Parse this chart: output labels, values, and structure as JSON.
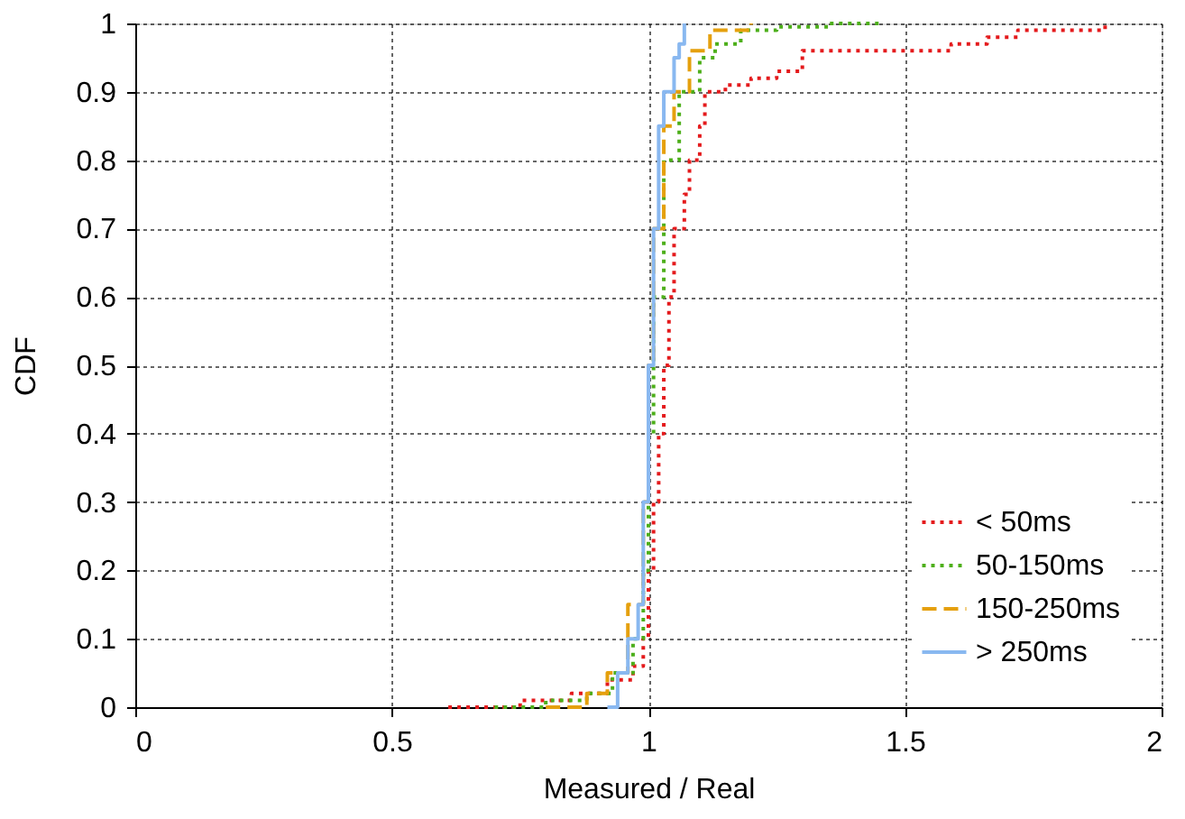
{
  "chart_data": {
    "type": "step",
    "xlabel": "Measured / Real",
    "ylabel": "CDF",
    "xlim": [
      0,
      2
    ],
    "xticks": [
      0,
      0.5,
      1,
      1.5,
      2
    ],
    "ylim": [
      0,
      1
    ],
    "yticks": [
      0,
      0.1,
      0.2,
      0.3,
      0.4,
      0.5,
      0.6,
      0.7,
      0.8,
      0.9,
      1
    ],
    "grid": true,
    "legend": "bottom right",
    "series": [
      {
        "name": "< 50ms",
        "color": "#e41a1c",
        "line_style": "dotted",
        "x": [
          0.61,
          0.75,
          0.85,
          0.92,
          0.97,
          0.99,
          1.0,
          1.01,
          1.02,
          1.03,
          1.04,
          1.05,
          1.07,
          1.08,
          1.1,
          1.11,
          1.15,
          1.2,
          1.25,
          1.3,
          1.45,
          1.59,
          1.66,
          1.72,
          1.77,
          1.89
        ],
        "values": [
          0,
          0.01,
          0.02,
          0.04,
          0.06,
          0.1,
          0.2,
          0.3,
          0.4,
          0.5,
          0.6,
          0.7,
          0.75,
          0.8,
          0.85,
          0.9,
          0.91,
          0.92,
          0.93,
          0.96,
          0.96,
          0.97,
          0.98,
          0.99,
          0.99,
          1
        ]
      },
      {
        "name": "50-150ms",
        "color": "#4daf1a",
        "line_style": "dotted",
        "x": [
          0.7,
          0.8,
          0.88,
          0.93,
          0.97,
          0.99,
          1.0,
          1.01,
          1.03,
          1.06,
          1.1,
          1.13,
          1.18,
          1.25,
          1.35,
          1.45
        ],
        "values": [
          0,
          0.01,
          0.02,
          0.05,
          0.1,
          0.2,
          0.4,
          0.6,
          0.8,
          0.9,
          0.95,
          0.97,
          0.99,
          0.995,
          1,
          1
        ]
      },
      {
        "name": "150-250ms",
        "color": "#e5a00d",
        "line_style": "dashed",
        "x": [
          0.8,
          0.88,
          0.92,
          0.96,
          0.99,
          1.0,
          1.01,
          1.03,
          1.05,
          1.08,
          1.12,
          1.2
        ],
        "values": [
          0,
          0.02,
          0.05,
          0.15,
          0.3,
          0.5,
          0.7,
          0.85,
          0.9,
          0.96,
          0.99,
          1
        ]
      },
      {
        "name": "> 250ms",
        "color": "#89b8f0",
        "line_style": "solid",
        "x": [
          0.92,
          0.94,
          0.96,
          0.98,
          0.99,
          1.0,
          1.01,
          1.02,
          1.03,
          1.05,
          1.06,
          1.07
        ],
        "values": [
          0,
          0.05,
          0.1,
          0.15,
          0.3,
          0.5,
          0.7,
          0.85,
          0.9,
          0.95,
          0.97,
          1
        ]
      }
    ]
  }
}
